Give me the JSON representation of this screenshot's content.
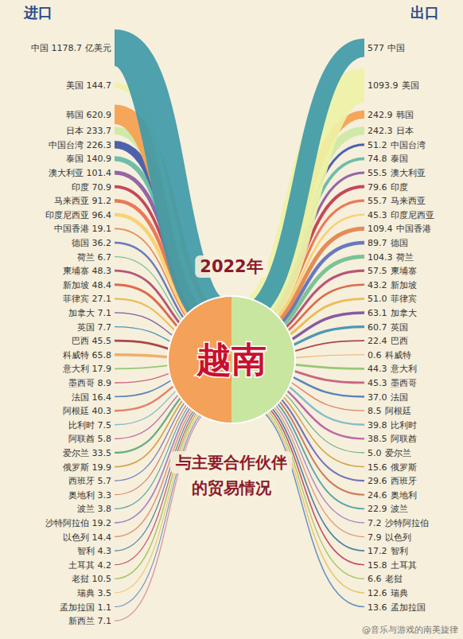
{
  "chart_data": {
    "type": "flow",
    "title": "2022年",
    "center_label": "越南",
    "subtitle": [
      "与主要合作伙伴",
      "的贸易情况"
    ],
    "unit": "亿美元",
    "watermark": "@音乐与游戏的南美旋律",
    "data_labels": true,
    "categories": [
      "中国",
      "美国",
      "韩国",
      "日本",
      "中国台湾",
      "泰国",
      "澳大利亚",
      "印度",
      "马来西亚",
      "印度尼西亚",
      "中国香港",
      "德国",
      "荷兰",
      "柬埔寨",
      "新加坡",
      "菲律宾",
      "加拿大",
      "英国",
      "巴西",
      "科威特",
      "意大利",
      "墨西哥",
      "法国",
      "阿根廷",
      "比利时",
      "阿联酋",
      "爱尔兰",
      "俄罗斯",
      "西班牙",
      "奥地利",
      "波兰",
      "沙特阿拉伯",
      "以色列",
      "智利",
      "土耳其",
      "老挝",
      "瑞典",
      "孟加拉国",
      "新西兰"
    ],
    "colors": [
      "#3f9aa8",
      "#eef2a6",
      "#f4a04f",
      "#cde8a3",
      "#3f56a6",
      "#62b8a4",
      "#8b5a9e",
      "#c0394b",
      "#e8704a",
      "#f7d06b",
      "#e2834a",
      "#5b6fb8",
      "#6fbf8f",
      "#b04a6a",
      "#d9603e",
      "#e9b84a",
      "#7a4f9a",
      "#3f8fb0",
      "#a33a3a",
      "#f0a860",
      "#8fc46a",
      "#c55a7a",
      "#4a7ab8",
      "#e07a5a",
      "#7ab8c8",
      "#b85aa0",
      "#5aa87a",
      "#d0a040",
      "#6a6ab8",
      "#c87050",
      "#4aa0a0",
      "#a07ac0",
      "#e09070",
      "#3f7a9a",
      "#c04060",
      "#9ac050",
      "#e8c060",
      "#5a8ac0",
      "#d88aa0"
    ],
    "series": [
      {
        "name": "进口",
        "values": [
          1178.7,
          144.7,
          620.9,
          233.7,
          226.3,
          140.9,
          101.4,
          70.9,
          91.2,
          96.4,
          19.1,
          36.2,
          6.7,
          48.3,
          48.4,
          27.1,
          7.1,
          7.7,
          45.5,
          65.8,
          17.9,
          8.9,
          16.4,
          40.3,
          7.5,
          5.8,
          33.5,
          19.9,
          5.7,
          3.3,
          3.8,
          19.2,
          14.4,
          4.3,
          4.2,
          10.5,
          3.5,
          1.1,
          7.1
        ],
        "value_labels": [
          "1178.7",
          "144.7",
          "620.9",
          "233.7",
          "226.3",
          "140.9",
          "101.4",
          "70.9",
          "91.2",
          "96.4",
          "19.1",
          "36.2",
          "6.7",
          "48.3",
          "48.4",
          "27.1",
          "7.1",
          "7.7",
          "45.5",
          "65.8",
          "17.9",
          "8.9",
          "16.4",
          "40.3",
          "7.5",
          "5.8",
          "33.5",
          "19.9",
          "5.7",
          "3.3",
          "3.8",
          "19.2",
          "14.4",
          "4.3",
          "4.2",
          "10.5",
          "3.5",
          "1.1",
          "7.1"
        ]
      },
      {
        "name": "出口",
        "values": [
          577,
          1093.9,
          242.9,
          242.3,
          51.2,
          74.8,
          55.5,
          79.6,
          55.7,
          45.3,
          109.4,
          89.7,
          104.3,
          57.5,
          43.2,
          51.0,
          63.1,
          60.7,
          22.4,
          0.6,
          44.3,
          45.3,
          37.0,
          8.5,
          39.8,
          38.5,
          5.0,
          15.6,
          29.6,
          24.6,
          22.9,
          7.2,
          7.9,
          17.2,
          15.8,
          6.6,
          12.6,
          13.6,
          null
        ],
        "value_labels": [
          "577",
          "1093.9",
          "242.9",
          "242.3",
          "51.2",
          "74.8",
          "55.5",
          "79.6",
          "55.7",
          "45.3",
          "109.4",
          "89.7",
          "104.3",
          "57.5",
          "43.2",
          "51.0",
          "63.1",
          "60.7",
          "22.4",
          "0.6",
          "44.3",
          "45.3",
          "37.0",
          "8.5",
          "39.8",
          "38.5",
          "5.0",
          "15.6",
          "29.6",
          "24.6",
          "22.9",
          "7.2",
          "7.9",
          "17.2",
          "15.8",
          "6.6",
          "12.6",
          "13.6",
          null
        ]
      }
    ]
  }
}
